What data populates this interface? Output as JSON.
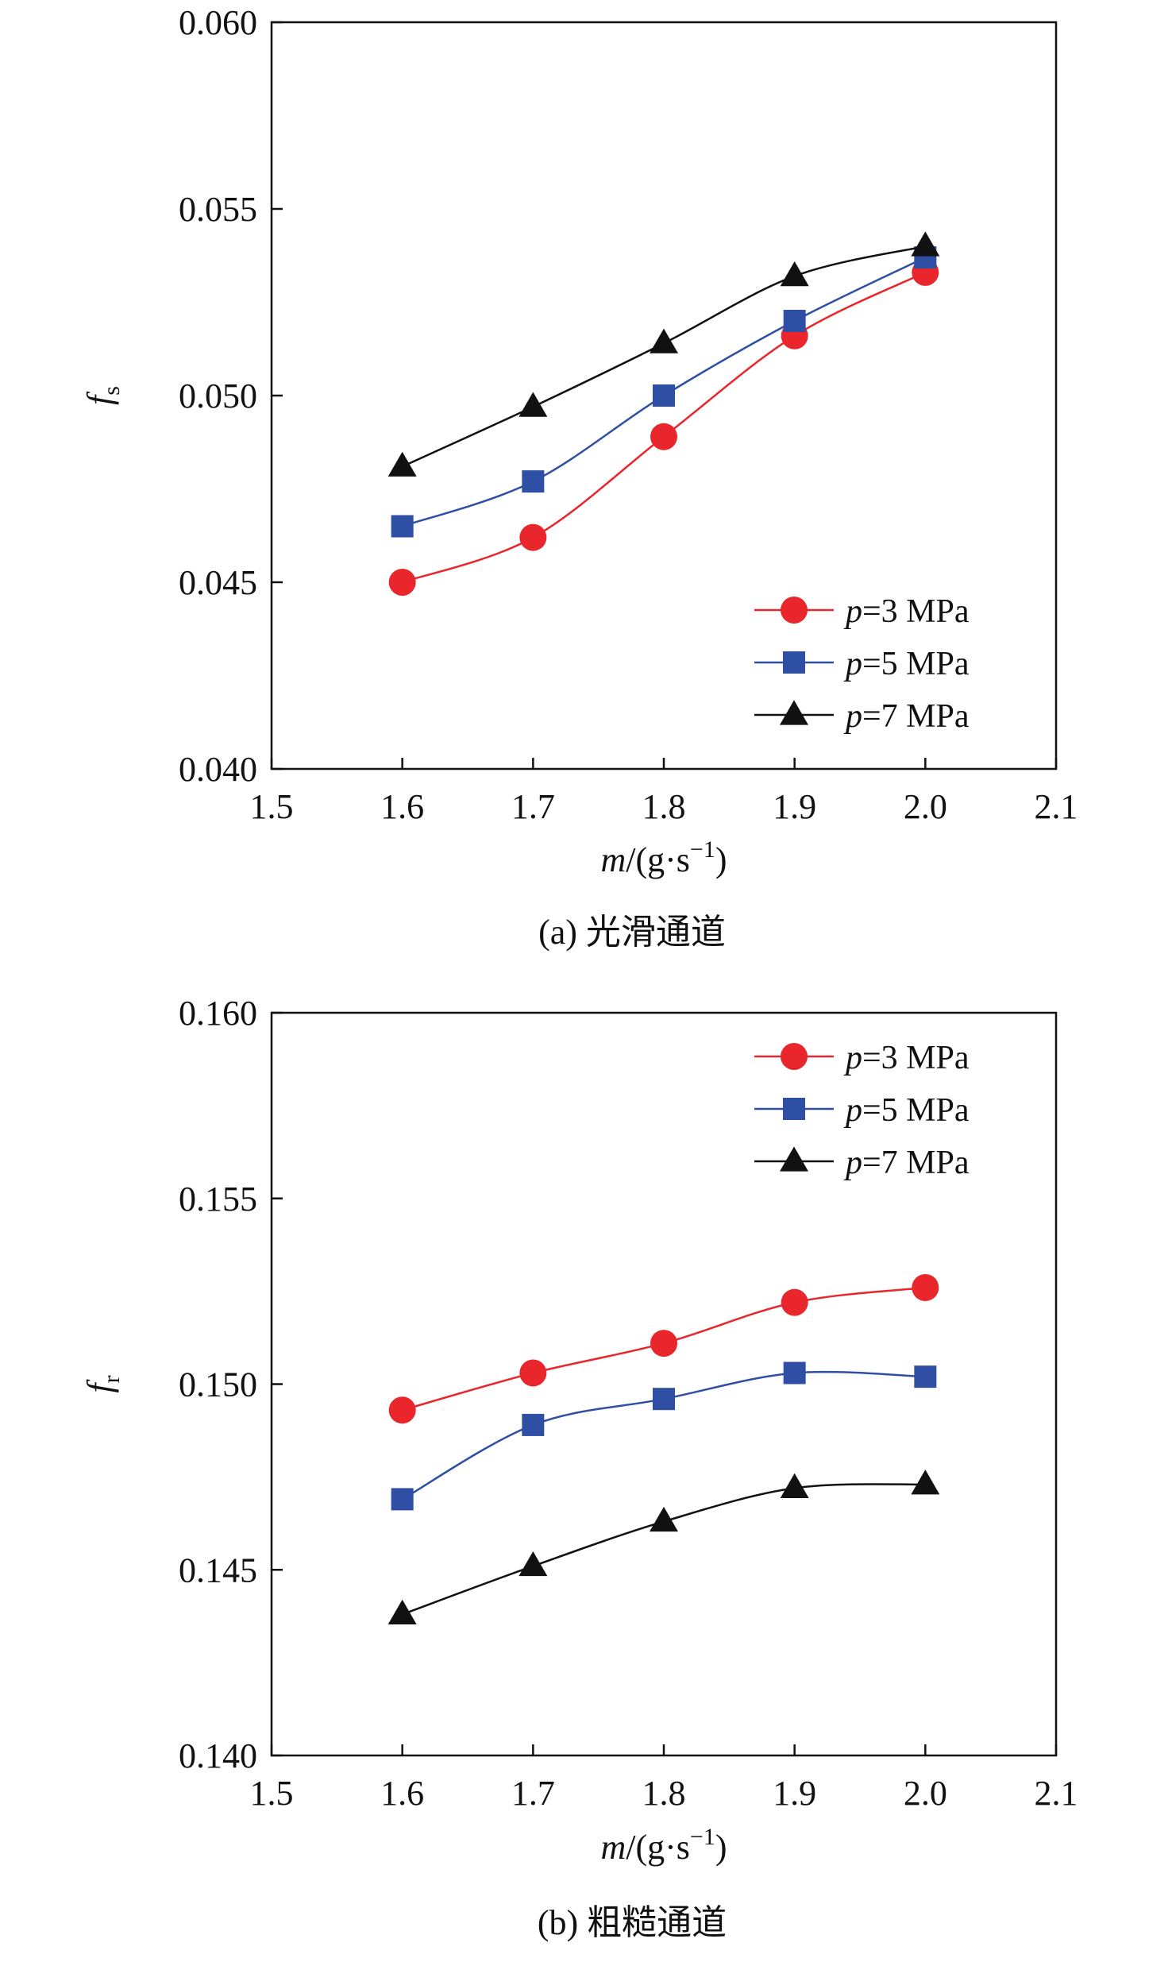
{
  "chart_data": [
    {
      "type": "line",
      "caption": "(a) 光滑通道",
      "ylabel": "f",
      "ylabel_sub": "s",
      "xlabel_var": "m",
      "xlabel_unit": "/(g·s",
      "xlabel_exp": "−1",
      "xlabel_close": ")",
      "xlim": [
        1.5,
        2.1
      ],
      "ylim": [
        0.04,
        0.06
      ],
      "xticks": [
        "1.5",
        "1.6",
        "1.7",
        "1.8",
        "1.9",
        "2.0",
        "2.1"
      ],
      "yticks": [
        "0.040",
        "0.045",
        "0.050",
        "0.055",
        "0.060"
      ],
      "legend_position": "bottom-right",
      "x": [
        1.6,
        1.7,
        1.8,
        1.9,
        2.0
      ],
      "series": [
        {
          "name_var": "p",
          "name_rest": "=3 MPa",
          "color": "#e8262b",
          "marker": "circle",
          "values": [
            0.045,
            0.0462,
            0.0489,
            0.0516,
            0.0533
          ]
        },
        {
          "name_var": "p",
          "name_rest": "=5 MPa",
          "color": "#2e4fa3",
          "marker": "square",
          "values": [
            0.0465,
            0.0477,
            0.05,
            0.052,
            0.0537
          ]
        },
        {
          "name_var": "p",
          "name_rest": "=7 MPa",
          "color": "#111111",
          "marker": "triangle",
          "values": [
            0.0481,
            0.0497,
            0.0514,
            0.0532,
            0.054
          ]
        }
      ]
    },
    {
      "type": "line",
      "caption": "(b) 粗糙通道",
      "ylabel": "f",
      "ylabel_sub": "r",
      "xlabel_var": "m",
      "xlabel_unit": "/(g·s",
      "xlabel_exp": "−1",
      "xlabel_close": ")",
      "xlim": [
        1.5,
        2.1
      ],
      "ylim": [
        0.14,
        0.16
      ],
      "xticks": [
        "1.5",
        "1.6",
        "1.7",
        "1.8",
        "1.9",
        "2.0",
        "2.1"
      ],
      "yticks": [
        "0.140",
        "0.145",
        "0.150",
        "0.155",
        "0.160"
      ],
      "legend_position": "top-right",
      "x": [
        1.6,
        1.7,
        1.8,
        1.9,
        2.0
      ],
      "series": [
        {
          "name_var": "p",
          "name_rest": "=3 MPa",
          "color": "#e8262b",
          "marker": "circle",
          "values": [
            0.1493,
            0.1503,
            0.1511,
            0.1522,
            0.1526
          ]
        },
        {
          "name_var": "p",
          "name_rest": "=5 MPa",
          "color": "#2e4fa3",
          "marker": "square",
          "values": [
            0.1469,
            0.1489,
            0.1496,
            0.1503,
            0.1502
          ]
        },
        {
          "name_var": "p",
          "name_rest": "=7 MPa",
          "color": "#111111",
          "marker": "triangle",
          "values": [
            0.1438,
            0.1451,
            0.1463,
            0.1472,
            0.1473
          ]
        }
      ]
    }
  ]
}
